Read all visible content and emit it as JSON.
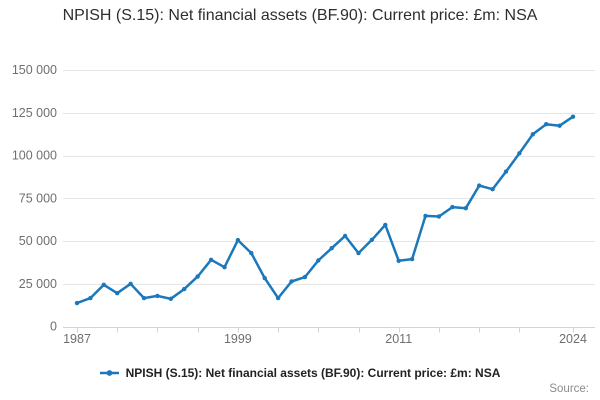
{
  "title": "NPISH (S.15): Net financial assets (BF.90): Current price: £m: NSA",
  "legend": {
    "label": "NPISH (S.15): Net financial assets (BF.90): Current price: £m: NSA"
  },
  "footer": {
    "source_label": "Source:"
  },
  "colors": {
    "line": "#1b78bc",
    "marker": "#1b78bc",
    "grid": "#e6e6e6",
    "axis": "#ccd6e0",
    "tick_label": "#6f6f6f",
    "title_text": "#2e2e2e",
    "legend_text": "#222222",
    "source_text": "#8c8c8c",
    "background": "#ffffff"
  },
  "chart_data": {
    "type": "line",
    "title": "NPISH (S.15): Net financial assets (BF.90): Current price: £m: NSA",
    "xlabel": "",
    "ylabel": "",
    "xlim": [
      1987,
      2024
    ],
    "ylim": [
      0,
      150000
    ],
    "grid": "horizontal",
    "legend_position": "bottom",
    "marker": "dot",
    "x": [
      1987,
      1988,
      1989,
      1990,
      1991,
      1992,
      1993,
      1994,
      1995,
      1996,
      1997,
      1998,
      1999,
      2000,
      2001,
      2002,
      2003,
      2004,
      2005,
      2006,
      2007,
      2008,
      2009,
      2010,
      2011,
      2012,
      2013,
      2014,
      2015,
      2016,
      2017,
      2018,
      2019,
      2020,
      2021,
      2022,
      2023,
      2024
    ],
    "series": [
      {
        "name": "NPISH (S.15): Net financial assets (BF.90): Current price: £m: NSA",
        "values": [
          13700,
          16600,
          24400,
          19500,
          25000,
          16600,
          17900,
          16200,
          21900,
          29200,
          39000,
          34700,
          50500,
          42900,
          28300,
          16600,
          26300,
          28900,
          38600,
          45800,
          53000,
          42900,
          50700,
          59400,
          38400,
          39400,
          64700,
          64300,
          69800,
          69200,
          82400,
          80300,
          90600,
          101300,
          112400,
          118300,
          117400,
          122700
        ]
      }
    ],
    "yticks": [
      {
        "v": 0,
        "label": "0"
      },
      {
        "v": 25000,
        "label": "25 000"
      },
      {
        "v": 50000,
        "label": "50 000"
      },
      {
        "v": 75000,
        "label": "75 000"
      },
      {
        "v": 100000,
        "label": "100 000"
      },
      {
        "v": 125000,
        "label": "125 000"
      },
      {
        "v": 150000,
        "label": "150 000"
      }
    ],
    "xticks_minor": [
      1987,
      1990,
      1993,
      1996,
      1999,
      2002,
      2005,
      2008,
      2011,
      2014,
      2017,
      2020,
      2024
    ],
    "xticks_labeled": [
      {
        "v": 1987,
        "label": "1987"
      },
      {
        "v": 1999,
        "label": "1999"
      },
      {
        "v": 2011,
        "label": "2011"
      },
      {
        "v": 2024,
        "label": "2024"
      }
    ]
  }
}
